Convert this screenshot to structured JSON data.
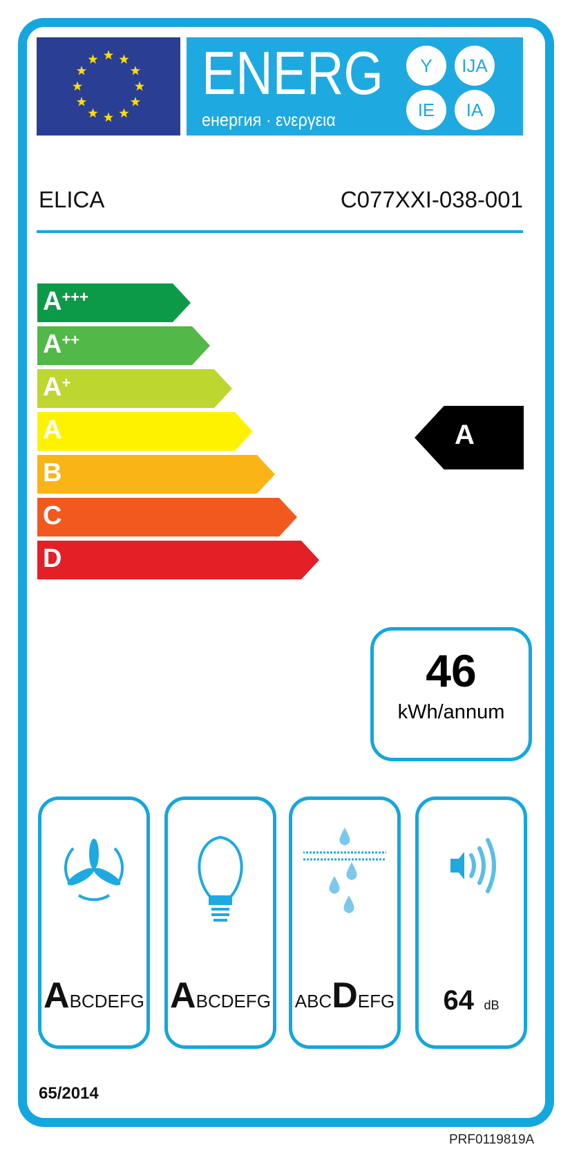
{
  "logo": {
    "title": "ENERG",
    "subtitle": "енергия · ενεργεια",
    "suffixes": [
      "Y",
      "IJA",
      "IE",
      "IA"
    ]
  },
  "supplier": "ELICA",
  "model": "C077XXI-038-001",
  "scale": {
    "classes": [
      {
        "label": "A",
        "plus": "+++",
        "color": "#0d9a48"
      },
      {
        "label": "A",
        "plus": "++",
        "color": "#52b847"
      },
      {
        "label": "A",
        "plus": "+",
        "color": "#bed630"
      },
      {
        "label": "A",
        "plus": "",
        "color": "#fff200"
      },
      {
        "label": "B",
        "plus": "",
        "color": "#fbb416"
      },
      {
        "label": "C",
        "plus": "",
        "color": "#f1591f"
      },
      {
        "label": "D",
        "plus": "",
        "color": "#e41f26"
      }
    ]
  },
  "rating": "A",
  "consumption": {
    "value": "46",
    "unit": "kWh/annum"
  },
  "icons": [
    {
      "icon": "fan-icon",
      "prefix": "",
      "highlight": "A",
      "suffix": "BCDEFG"
    },
    {
      "icon": "lightbulb-icon",
      "prefix": "",
      "highlight": "A",
      "suffix": "BCDEFG"
    },
    {
      "icon": "grease-filter-icon",
      "prefix": "ABC",
      "highlight": "D",
      "suffix": "EFG"
    },
    {
      "icon": "speaker-icon",
      "value": "64",
      "unit": "dB"
    }
  ],
  "regulation": "65/2014",
  "code": "PRF0119819A",
  "colors": {
    "frame": "#14a6de",
    "flag": "#2a3f94",
    "stars": "#ffdd00"
  }
}
